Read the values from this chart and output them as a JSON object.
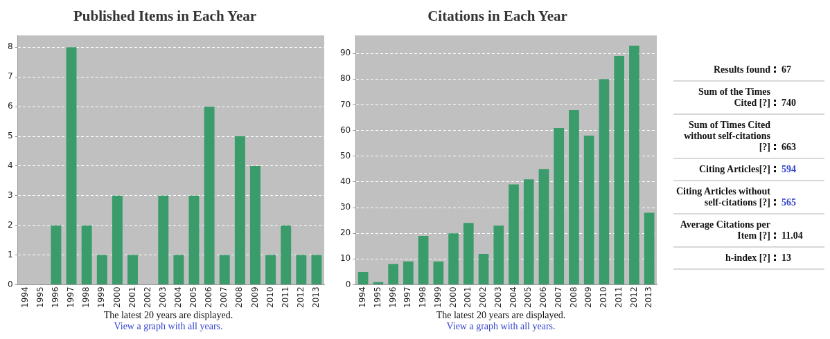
{
  "chart_data": [
    {
      "type": "bar",
      "title": "Published Items in Each Year",
      "categories": [
        "1994",
        "1995",
        "1996",
        "1997",
        "1998",
        "1999",
        "2000",
        "2001",
        "2002",
        "2003",
        "2004",
        "2005",
        "2006",
        "2007",
        "2008",
        "2009",
        "2010",
        "2011",
        "2012",
        "2013"
      ],
      "values": [
        0,
        0,
        2,
        8,
        2,
        1,
        3,
        1,
        0,
        3,
        1,
        3,
        6,
        1,
        5,
        4,
        1,
        2,
        1,
        1
      ],
      "color": "#3a9b6b",
      "ylim": [
        0,
        8.4
      ],
      "yticks": [
        0,
        1,
        2,
        3,
        4,
        5,
        6,
        7,
        8
      ],
      "grid": "y",
      "annotations": [
        "The latest 20 years are displayed.",
        "View a graph with all years."
      ]
    },
    {
      "type": "bar",
      "title": "Citations in Each Year",
      "categories": [
        "1994",
        "1995",
        "1996",
        "1997",
        "1998",
        "1999",
        "2000",
        "2001",
        "2002",
        "2003",
        "2004",
        "2005",
        "2006",
        "2007",
        "2008",
        "2009",
        "2010",
        "2011",
        "2012",
        "2013"
      ],
      "values": [
        5,
        1,
        8,
        9,
        19,
        9,
        20,
        24,
        12,
        23,
        39,
        41,
        45,
        61,
        68,
        58,
        80,
        89,
        93,
        28
      ],
      "color": "#3a9b6b",
      "ylim": [
        0,
        97
      ],
      "yticks": [
        0,
        10,
        20,
        30,
        40,
        50,
        60,
        70,
        80,
        90
      ],
      "grid": "y",
      "annotations": [
        "The latest 20 years are displayed.",
        "View a graph with all years."
      ]
    },
    {
      "type": "other",
      "categories": [
        "Results found",
        "Sum of the Times Cited [?]",
        "Sum of Times Cited without self-citations [?]",
        "Citing Articles[?]",
        "Citing Articles without self-citations [?]",
        "Average Citations per Item [?]",
        "h-index [?]"
      ],
      "values": [
        67,
        740,
        663,
        594,
        565,
        11.04,
        13
      ],
      "colors": [
        "#111111",
        "#111111",
        "#111111",
        "#3344cc",
        "#3344cc",
        "#111111",
        "#111111"
      ],
      "data_labels": true
    }
  ]
}
